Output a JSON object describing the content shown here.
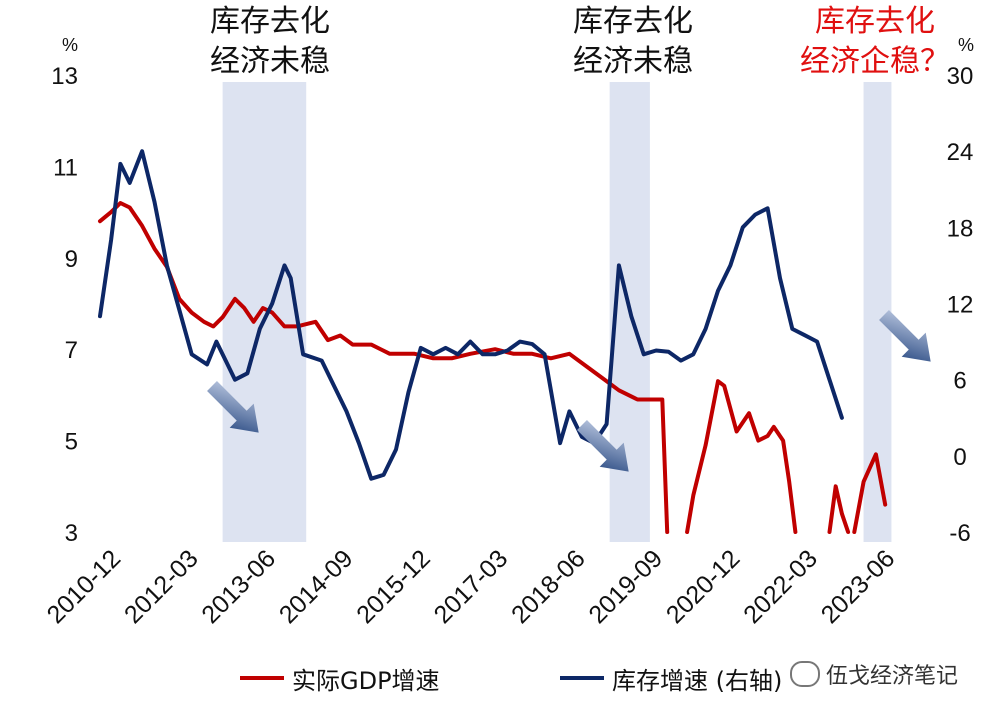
{
  "chart_data": {
    "type": "line",
    "annotations": [
      {
        "lines": [
          "库存去化",
          "经济未稳"
        ],
        "color": "#111111"
      },
      {
        "lines": [
          "库存去化",
          "经济未稳"
        ],
        "color": "#111111"
      },
      {
        "lines": [
          "库存去化",
          "经济企稳？"
        ],
        "color": "#e01010"
      }
    ],
    "shaded_periods": [
      {
        "start": 2012.9,
        "end": 2014.25
      },
      {
        "start": 2019.15,
        "end": 2019.8
      },
      {
        "start": 2023.25,
        "end": 2023.7
      }
    ],
    "x_axis": {
      "range": [
        2010.92,
        2024.0
      ],
      "ticks": [
        {
          "label": "2010-12",
          "value": 2010.92
        },
        {
          "label": "2012-03",
          "value": 2012.17
        },
        {
          "label": "2013-06",
          "value": 2013.42
        },
        {
          "label": "2014-09",
          "value": 2014.67
        },
        {
          "label": "2015-12",
          "value": 2015.92
        },
        {
          "label": "2017-03",
          "value": 2017.17
        },
        {
          "label": "2018-06",
          "value": 2018.42
        },
        {
          "label": "2019-09",
          "value": 2019.67
        },
        {
          "label": "2020-12",
          "value": 2020.92
        },
        {
          "label": "2022-03",
          "value": 2022.17
        },
        {
          "label": "2023-06",
          "value": 2023.42
        }
      ]
    },
    "y_left": {
      "unit": "%",
      "range": [
        3,
        13
      ],
      "ticks": [
        3,
        5,
        7,
        9,
        11,
        13
      ]
    },
    "y_right": {
      "unit": "%",
      "range": [
        -6,
        30
      ],
      "ticks": [
        -6,
        0,
        6,
        12,
        18,
        24,
        30
      ]
    },
    "series": [
      {
        "name": "实际GDP增速",
        "axis": "left",
        "color": "#c00000",
        "points": [
          [
            2010.92,
            9.8
          ],
          [
            2011.1,
            10.0
          ],
          [
            2011.25,
            10.2
          ],
          [
            2011.4,
            10.1
          ],
          [
            2011.6,
            9.7
          ],
          [
            2011.8,
            9.2
          ],
          [
            2012.0,
            8.8
          ],
          [
            2012.2,
            8.1
          ],
          [
            2012.4,
            7.8
          ],
          [
            2012.6,
            7.6
          ],
          [
            2012.75,
            7.5
          ],
          [
            2012.9,
            7.7
          ],
          [
            2013.1,
            8.1
          ],
          [
            2013.25,
            7.9
          ],
          [
            2013.4,
            7.6
          ],
          [
            2013.55,
            7.9
          ],
          [
            2013.7,
            7.8
          ],
          [
            2013.9,
            7.5
          ],
          [
            2014.1,
            7.5
          ],
          [
            2014.4,
            7.6
          ],
          [
            2014.6,
            7.2
          ],
          [
            2014.8,
            7.3
          ],
          [
            2015.0,
            7.1
          ],
          [
            2015.3,
            7.1
          ],
          [
            2015.6,
            6.9
          ],
          [
            2016.0,
            6.9
          ],
          [
            2016.3,
            6.8
          ],
          [
            2016.6,
            6.8
          ],
          [
            2016.9,
            6.9
          ],
          [
            2017.3,
            7.0
          ],
          [
            2017.6,
            6.9
          ],
          [
            2017.9,
            6.9
          ],
          [
            2018.2,
            6.8
          ],
          [
            2018.5,
            6.9
          ],
          [
            2018.8,
            6.6
          ],
          [
            2019.0,
            6.4
          ],
          [
            2019.3,
            6.1
          ],
          [
            2019.6,
            5.9
          ],
          [
            2019.9,
            5.9
          ],
          [
            2020.0,
            5.9
          ],
          [
            2020.08,
            3.0
          ]
        ],
        "points_segment_2": [
          [
            2020.4,
            3.0
          ],
          [
            2020.5,
            3.8
          ],
          [
            2020.7,
            4.9
          ],
          [
            2020.9,
            6.3
          ],
          [
            2021.0,
            6.2
          ],
          [
            2021.2,
            5.2
          ],
          [
            2021.4,
            5.6
          ],
          [
            2021.55,
            5.0
          ],
          [
            2021.7,
            5.1
          ],
          [
            2021.8,
            5.3
          ],
          [
            2021.95,
            5.0
          ],
          [
            2022.05,
            4.1
          ],
          [
            2022.15,
            3.0
          ]
        ],
        "points_segment_3": [
          [
            2022.7,
            3.0
          ],
          [
            2022.8,
            4.0
          ],
          [
            2022.9,
            3.4
          ],
          [
            2023.0,
            3.0
          ]
        ],
        "points_segment_4": [
          [
            2023.1,
            3.0
          ],
          [
            2023.25,
            4.1
          ],
          [
            2023.45,
            4.7
          ],
          [
            2023.6,
            3.6
          ]
        ]
      },
      {
        "name": "库存增速 (右轴)",
        "axis": "right",
        "color": "#0d2766",
        "points": [
          [
            2010.92,
            11.0
          ],
          [
            2011.1,
            17.0
          ],
          [
            2011.25,
            23.0
          ],
          [
            2011.4,
            21.5
          ],
          [
            2011.6,
            24.0
          ],
          [
            2011.8,
            20.0
          ],
          [
            2012.0,
            15.0
          ],
          [
            2012.2,
            11.5
          ],
          [
            2012.4,
            8.0
          ],
          [
            2012.65,
            7.2
          ],
          [
            2012.8,
            9.0
          ],
          [
            2012.95,
            7.5
          ],
          [
            2013.1,
            6.0
          ],
          [
            2013.3,
            6.5
          ],
          [
            2013.5,
            10.0
          ],
          [
            2013.7,
            12.0
          ],
          [
            2013.9,
            15.0
          ],
          [
            2014.0,
            14.0
          ],
          [
            2014.2,
            8.0
          ],
          [
            2014.5,
            7.5
          ],
          [
            2014.7,
            5.5
          ],
          [
            2014.9,
            3.5
          ],
          [
            2015.1,
            1.0
          ],
          [
            2015.3,
            -1.8
          ],
          [
            2015.5,
            -1.5
          ],
          [
            2015.7,
            0.5
          ],
          [
            2015.9,
            5.0
          ],
          [
            2016.1,
            8.5
          ],
          [
            2016.3,
            8.0
          ],
          [
            2016.5,
            8.5
          ],
          [
            2016.7,
            8.0
          ],
          [
            2016.9,
            9.0
          ],
          [
            2017.1,
            8.0
          ],
          [
            2017.3,
            8.0
          ],
          [
            2017.5,
            8.3
          ],
          [
            2017.7,
            9.0
          ],
          [
            2017.9,
            8.8
          ],
          [
            2018.1,
            8.0
          ],
          [
            2018.35,
            1.0
          ],
          [
            2018.5,
            3.5
          ],
          [
            2018.7,
            1.5
          ],
          [
            2018.9,
            1.0
          ],
          [
            2019.1,
            2.5
          ],
          [
            2019.3,
            15.0
          ],
          [
            2019.5,
            11.0
          ],
          [
            2019.7,
            8.0
          ],
          [
            2019.9,
            8.3
          ],
          [
            2020.1,
            8.2
          ],
          [
            2020.3,
            7.5
          ],
          [
            2020.5,
            8.0
          ],
          [
            2020.7,
            10.0
          ],
          [
            2020.9,
            13.0
          ],
          [
            2021.1,
            15.0
          ],
          [
            2021.3,
            18.0
          ],
          [
            2021.5,
            19.0
          ],
          [
            2021.7,
            19.5
          ],
          [
            2021.9,
            14.0
          ],
          [
            2022.1,
            10.0
          ],
          [
            2022.3,
            9.5
          ],
          [
            2022.5,
            9.0
          ],
          [
            2022.7,
            6.0
          ],
          [
            2022.9,
            3.0
          ]
        ]
      }
    ],
    "legend": [
      {
        "label": "实际GDP增速",
        "color": "#c00000"
      },
      {
        "label": "库存增速 (右轴)",
        "color": "#0d2766"
      }
    ],
    "watermark": "伍戈经济笔记"
  }
}
